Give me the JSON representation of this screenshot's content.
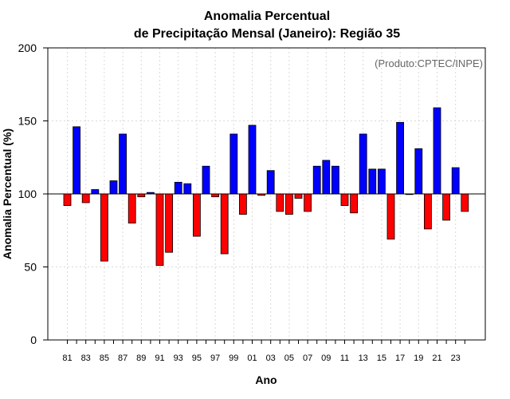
{
  "chart_data": {
    "type": "bar",
    "title_line1": "Anomalia Percentual",
    "title_line2": "de Precipitação Mensal (Janeiro): Região 35",
    "xlabel": "Ano",
    "ylabel": "Anomalia Percentual (%)",
    "credit": "(Produto:CPTEC/INPE)",
    "baseline": 100,
    "ylim": [
      0,
      200
    ],
    "yticks": [
      0,
      50,
      100,
      150,
      200
    ],
    "grid": true,
    "categories": [
      "1981",
      "1982",
      "1983",
      "1984",
      "1985",
      "1986",
      "1987",
      "1988",
      "1989",
      "1990",
      "1991",
      "1992",
      "1993",
      "1994",
      "1995",
      "1996",
      "1997",
      "1998",
      "1999",
      "2000",
      "2001",
      "2002",
      "2003",
      "2004",
      "2005",
      "2006",
      "2007",
      "2008",
      "2009",
      "2010",
      "2011",
      "2012",
      "2013",
      "2014",
      "2015",
      "2016",
      "2017",
      "2018",
      "2019",
      "2020",
      "2021",
      "2022",
      "2023",
      "2024"
    ],
    "values": [
      92,
      146,
      94,
      103,
      54,
      109,
      141,
      80,
      98,
      101,
      51,
      60,
      108,
      107,
      71,
      119,
      98,
      59,
      141,
      86,
      147,
      99,
      116,
      88,
      86,
      97,
      88,
      119,
      123,
      119,
      92,
      87,
      141,
      117,
      117,
      69,
      149,
      100,
      131,
      76,
      159,
      82,
      118,
      88
    ],
    "xtick_labels": [
      "81",
      "83",
      "85",
      "87",
      "89",
      "91",
      "93",
      "95",
      "97",
      "99",
      "01",
      "03",
      "05",
      "07",
      "09",
      "11",
      "13",
      "15",
      "17",
      "19",
      "21",
      "23"
    ],
    "above_color": "#0000ff",
    "below_color": "#ff0000"
  }
}
